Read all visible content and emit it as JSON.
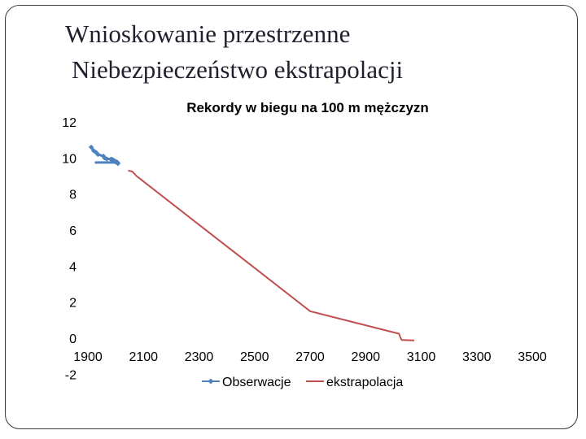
{
  "slide": {
    "title_line1": "Wnioskowanie przestrzenne",
    "title_line2": "Niebezpieczeństwo ekstrapolacji"
  },
  "colors": {
    "observations": "#4f81bd",
    "extrapolation": "#c0504d",
    "border": "#3a3a3a"
  },
  "chart_data": {
    "type": "line",
    "title": "Rekordy w biegu na 100 m mężczyzn",
    "xlabel": "",
    "ylabel": "",
    "xlim": [
      1900,
      3500
    ],
    "ylim": [
      -2,
      12
    ],
    "x_ticks": [
      "1900",
      "2100",
      "2300",
      "2500",
      "2700",
      "2900",
      "3100",
      "3300",
      "3500"
    ],
    "y_ticks": [
      "12",
      "10",
      "8",
      "6",
      "4",
      "2",
      "0",
      "-2"
    ],
    "grid": false,
    "legend": "bottom",
    "series": [
      {
        "name": "Obserwacje",
        "marker": "diamond",
        "points": [
          [
            1912,
            10.6
          ],
          [
            1921,
            10.4
          ],
          [
            1930,
            10.3
          ],
          [
            1936,
            10.2
          ],
          [
            1956,
            10.1
          ],
          [
            1960,
            10.0
          ],
          [
            1968,
            9.95
          ],
          [
            1983,
            9.93
          ],
          [
            1988,
            9.92
          ],
          [
            1991,
            9.86
          ],
          [
            1994,
            9.85
          ],
          [
            1996,
            9.84
          ],
          [
            1999,
            9.79
          ],
          [
            2002,
            9.78
          ],
          [
            2005,
            9.77
          ],
          [
            2007,
            9.74
          ],
          [
            2008,
            9.69
          ]
        ],
        "extra_segment": [
          [
            1925,
            9.75
          ],
          [
            2000,
            9.75
          ]
        ]
      },
      {
        "name": "ekstrapolacja",
        "marker": "none",
        "points": [
          [
            2045,
            9.3
          ],
          [
            2060,
            9.25
          ],
          [
            2075,
            9.0
          ],
          [
            2100,
            8.7
          ],
          [
            2300,
            6.3
          ],
          [
            2500,
            3.9
          ],
          [
            2700,
            1.5
          ],
          [
            3020,
            0.25
          ],
          [
            3025,
            0.05
          ],
          [
            3030,
            -0.1
          ],
          [
            3075,
            -0.12
          ]
        ]
      }
    ]
  }
}
